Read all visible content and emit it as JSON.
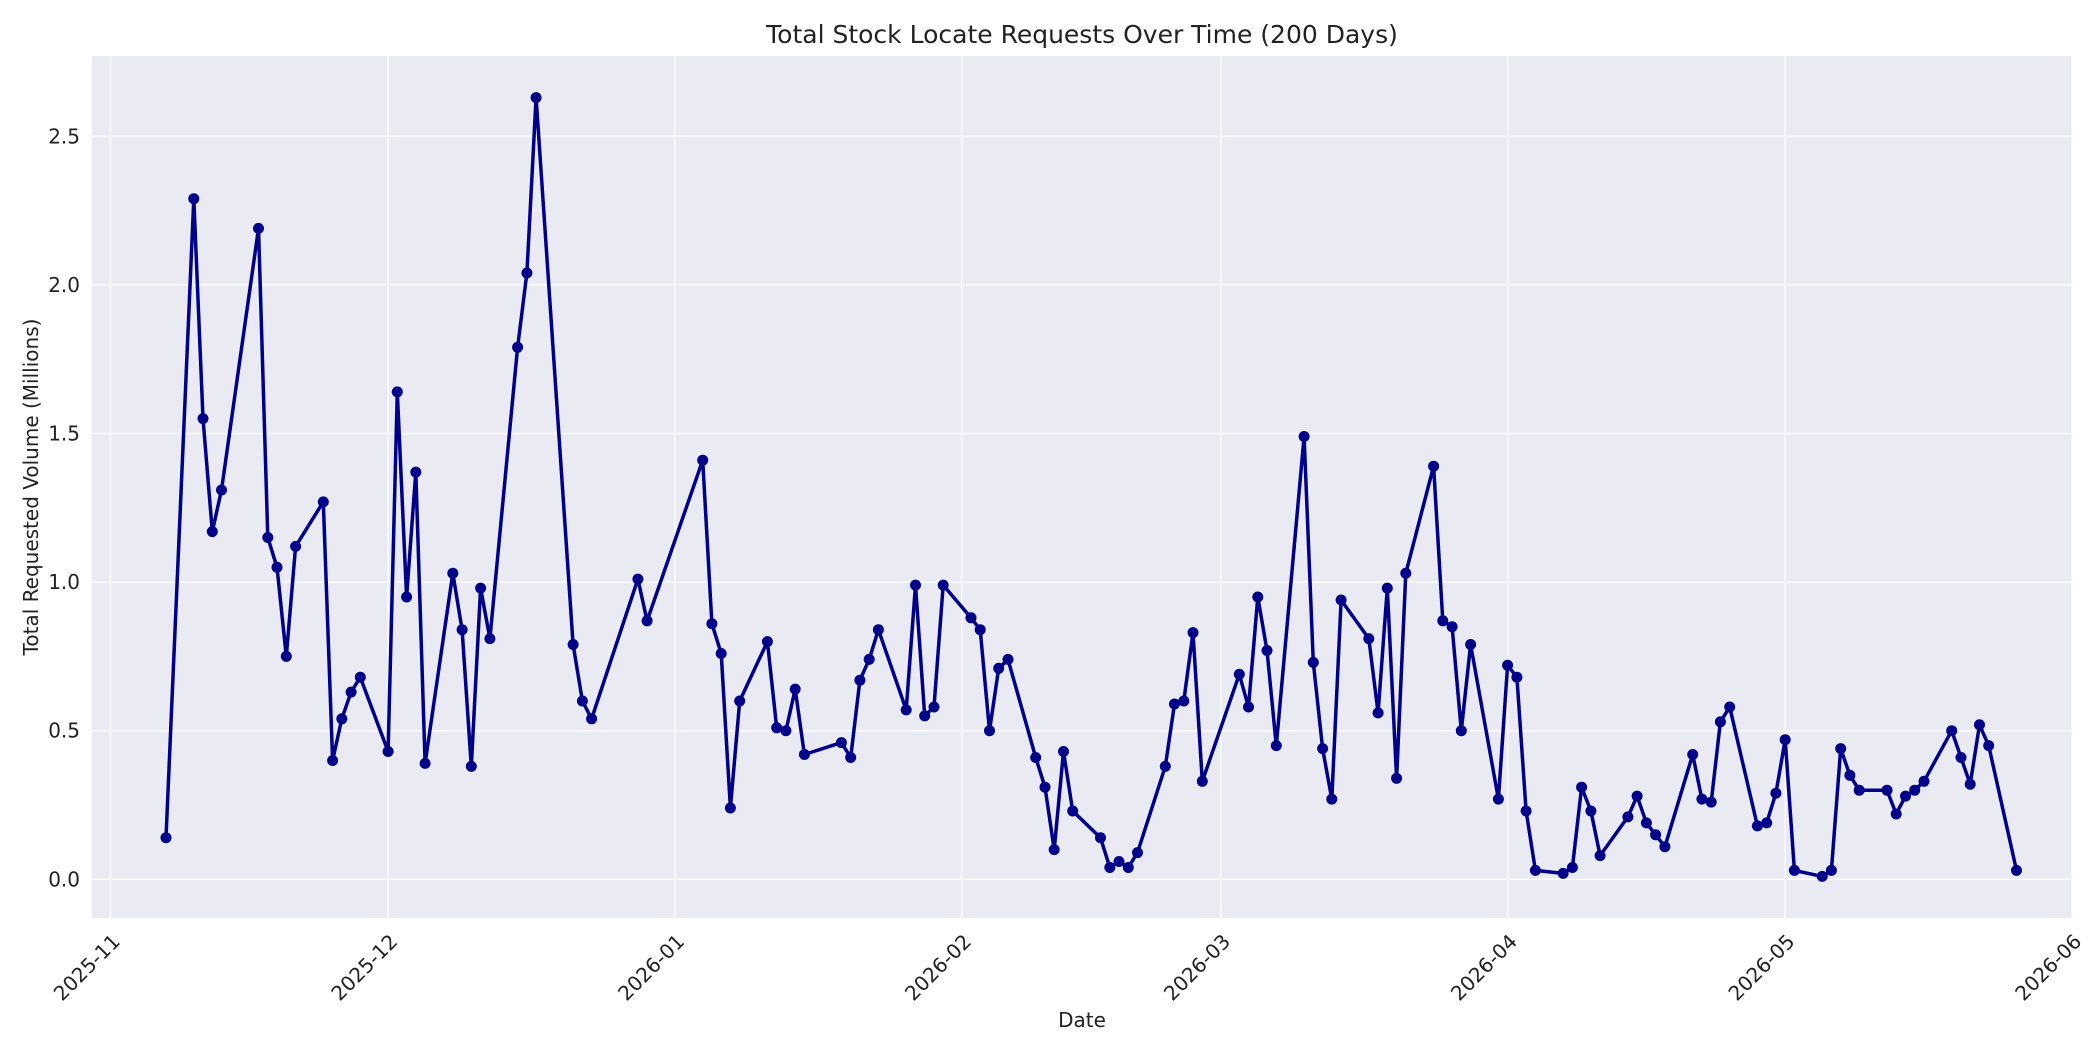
{
  "chart_data": {
    "type": "line",
    "title": "Total Stock Locate Requests Over Time (200 Days)",
    "xlabel": "Date",
    "ylabel": "Total Requested Volume (Millions)",
    "x_tick_labels": [
      "2025-11",
      "2025-12",
      "2026-01",
      "2026-02",
      "2026-03",
      "2026-04",
      "2026-05",
      "2026-06"
    ],
    "x_ticks": [
      "2025-11-01",
      "2025-12-01",
      "2026-01-01",
      "2026-02-01",
      "2026-03-01",
      "2026-04-01",
      "2026-05-01",
      "2026-06-01"
    ],
    "y_ticks": [
      0.0,
      0.5,
      1.0,
      1.5,
      2.0,
      2.5
    ],
    "y_tick_labels": [
      "0.0",
      "0.5",
      "1.0",
      "1.5",
      "2.0",
      "2.5"
    ],
    "xlim": [
      "2025-10-30",
      "2026-06-01"
    ],
    "ylim": [
      -0.13,
      2.77
    ],
    "grid": true,
    "colors": {
      "line": "#00008b",
      "plot_background": "#eaeaf2",
      "grid": "#ffffff"
    },
    "series": [
      {
        "x": [
          "2025-11-07",
          "2025-11-10",
          "2025-11-11",
          "2025-11-12",
          "2025-11-13",
          "2025-11-17",
          "2025-11-18",
          "2025-11-19",
          "2025-11-20",
          "2025-11-21",
          "2025-11-24",
          "2025-11-25",
          "2025-11-26",
          "2025-11-27",
          "2025-11-28",
          "2025-12-01",
          "2025-12-02",
          "2025-12-03",
          "2025-12-04",
          "2025-12-05",
          "2025-12-08",
          "2025-12-09",
          "2025-12-10",
          "2025-12-11",
          "2025-12-12",
          "2025-12-15",
          "2025-12-16",
          "2025-12-17",
          "2025-12-21",
          "2025-12-22",
          "2025-12-23",
          "2025-12-28",
          "2025-12-29",
          "2026-01-04",
          "2026-01-05",
          "2026-01-06",
          "2026-01-07",
          "2026-01-08",
          "2026-01-11",
          "2026-01-12",
          "2026-01-13",
          "2026-01-14",
          "2026-01-15",
          "2026-01-19",
          "2026-01-20",
          "2026-01-21",
          "2026-01-22",
          "2026-01-23",
          "2026-01-26",
          "2026-01-27",
          "2026-01-28",
          "2026-01-29",
          "2026-01-30",
          "2026-02-02",
          "2026-02-03",
          "2026-02-04",
          "2026-02-05",
          "2026-02-06",
          "2026-02-09",
          "2026-02-10",
          "2026-02-11",
          "2026-02-12",
          "2026-02-13",
          "2026-02-16",
          "2026-02-17",
          "2026-02-18",
          "2026-02-19",
          "2026-02-20",
          "2026-02-23",
          "2026-02-24",
          "2026-02-25",
          "2026-02-26",
          "2026-02-27",
          "2026-03-03",
          "2026-03-04",
          "2026-03-05",
          "2026-03-06",
          "2026-03-07",
          "2026-03-10",
          "2026-03-11",
          "2026-03-12",
          "2026-03-13",
          "2026-03-14",
          "2026-03-17",
          "2026-03-18",
          "2026-03-19",
          "2026-03-20",
          "2026-03-21",
          "2026-03-24",
          "2026-03-25",
          "2026-03-26",
          "2026-03-27",
          "2026-03-28",
          "2026-03-31",
          "2026-04-01",
          "2026-04-02",
          "2026-04-03",
          "2026-04-04",
          "2026-04-07",
          "2026-04-08",
          "2026-04-09",
          "2026-04-10",
          "2026-04-11",
          "2026-04-14",
          "2026-04-15",
          "2026-04-16",
          "2026-04-17",
          "2026-04-18",
          "2026-04-21",
          "2026-04-22",
          "2026-04-23",
          "2026-04-24",
          "2026-04-25",
          "2026-04-28",
          "2026-04-29",
          "2026-04-30",
          "2026-05-01",
          "2026-05-02",
          "2026-05-05",
          "2026-05-06",
          "2026-05-07",
          "2026-05-08",
          "2026-05-09",
          "2026-05-12",
          "2026-05-13",
          "2026-05-14",
          "2026-05-15",
          "2026-05-16",
          "2026-05-19",
          "2026-05-20",
          "2026-05-21",
          "2026-05-22",
          "2026-05-23",
          "2026-05-26"
        ],
        "values": [
          0.14,
          2.29,
          1.55,
          1.17,
          1.31,
          2.19,
          1.15,
          1.05,
          0.75,
          1.12,
          1.27,
          0.4,
          0.54,
          0.63,
          0.68,
          0.43,
          1.64,
          0.95,
          1.37,
          0.39,
          1.03,
          0.84,
          0.38,
          0.98,
          0.81,
          1.79,
          2.04,
          2.63,
          0.79,
          0.6,
          0.54,
          1.01,
          0.87,
          1.41,
          0.86,
          0.76,
          0.24,
          0.6,
          0.8,
          0.51,
          0.5,
          0.64,
          0.42,
          0.46,
          0.41,
          0.67,
          0.74,
          0.84,
          0.57,
          0.99,
          0.55,
          0.58,
          0.99,
          0.88,
          0.84,
          0.5,
          0.71,
          0.74,
          0.41,
          0.31,
          0.1,
          0.43,
          0.23,
          0.14,
          0.04,
          0.06,
          0.04,
          0.09,
          0.38,
          0.59,
          0.6,
          0.83,
          0.33,
          0.69,
          0.58,
          0.95,
          0.77,
          0.45,
          1.49,
          0.73,
          0.44,
          0.27,
          0.94,
          0.81,
          0.56,
          0.98,
          0.34,
          1.03,
          1.39,
          0.87,
          0.85,
          0.5,
          0.79,
          0.27,
          0.72,
          0.68,
          0.23,
          0.03,
          0.02,
          0.04,
          0.31,
          0.23,
          0.08,
          0.21,
          0.28,
          0.19,
          0.15,
          0.11,
          0.42,
          0.27,
          0.26,
          0.53,
          0.58,
          0.18,
          0.19,
          0.29,
          0.47,
          0.03,
          0.01,
          0.03,
          0.44,
          0.35,
          0.3,
          0.3,
          0.22,
          0.28,
          0.3,
          0.33,
          0.5,
          0.41,
          0.32,
          0.52,
          0.45,
          0.03
        ]
      }
    ]
  }
}
